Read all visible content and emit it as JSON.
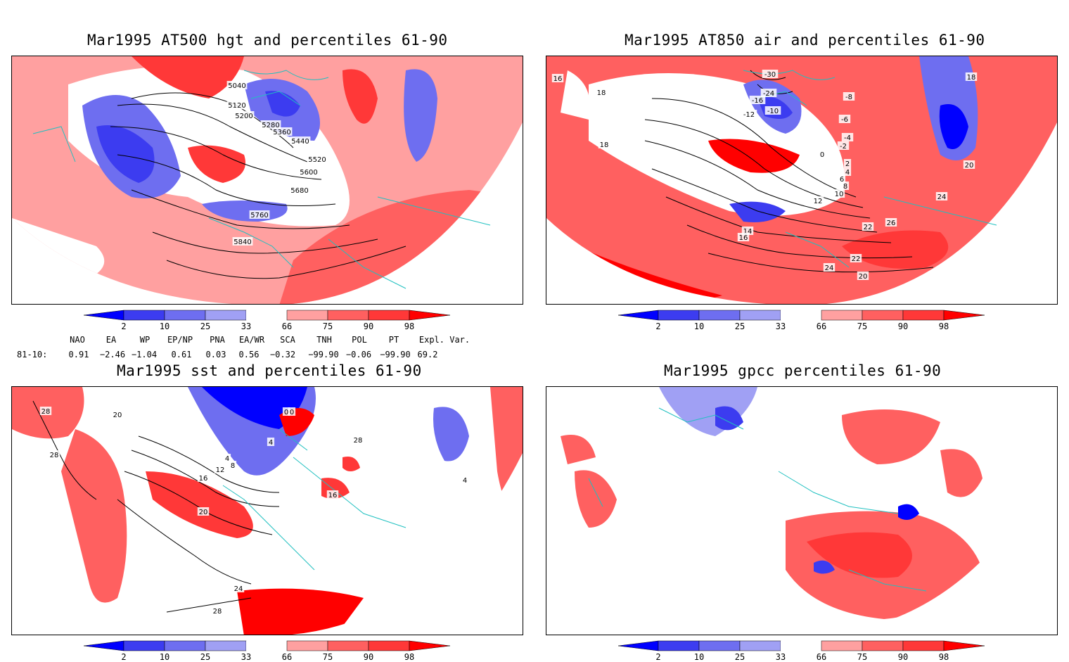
{
  "panels": [
    {
      "id": "p1",
      "title": "Mar1995 AT500 hgt and percentiles 61-90",
      "contour_labels": [
        "5040",
        "5120",
        "5200",
        "5280",
        "5360",
        "5440",
        "5520",
        "5600",
        "5680",
        "5760",
        "5840"
      ]
    },
    {
      "id": "p2",
      "title": "Mar1995 AT850 air and percentiles 61-90",
      "contour_labels": [
        "16",
        "18",
        "18",
        "-30",
        "-24",
        "-16",
        "-12",
        "-10",
        "-8",
        "-6",
        "-4",
        "-2",
        "0",
        "2",
        "4",
        "6",
        "8",
        "10",
        "12",
        "14",
        "16",
        "18",
        "20",
        "20",
        "22",
        "22",
        "24",
        "24",
        "26"
      ]
    },
    {
      "id": "p3",
      "title": "Mar1995 sst and percentiles 61-90",
      "contour_labels": [
        "28",
        "28",
        "20",
        "0",
        "4",
        "4",
        "8",
        "12",
        "16",
        "20",
        "24",
        "28",
        "4",
        "16",
        "28",
        "0"
      ]
    },
    {
      "id": "p4",
      "title": "Mar1995 gpcc percentiles 61-90",
      "contour_labels": []
    }
  ],
  "colorbar": {
    "labels": [
      "2",
      "10",
      "25",
      "33",
      "66",
      "75",
      "90",
      "98"
    ],
    "colors": [
      "#0000ff",
      "#3c3cf0",
      "#6e6ef0",
      "#a0a0f4",
      "#ffffff",
      "#ffa0a0",
      "#ff6060",
      "#ff3838",
      "#ff0000"
    ]
  },
  "indices": {
    "row_label": "81-10:",
    "headers": [
      "NAO",
      "EA",
      "WP",
      "EP/NP",
      "PNA",
      "EA/WR",
      "SCA",
      "TNH",
      "POL",
      "PT",
      "Expl. Var."
    ],
    "values": [
      "0.91",
      "−2.46",
      "−1.04",
      "0.61",
      "0.03",
      "0.56",
      "−0.32",
      "−99.90",
      "−0.06",
      "−99.90",
      "69.2"
    ]
  }
}
